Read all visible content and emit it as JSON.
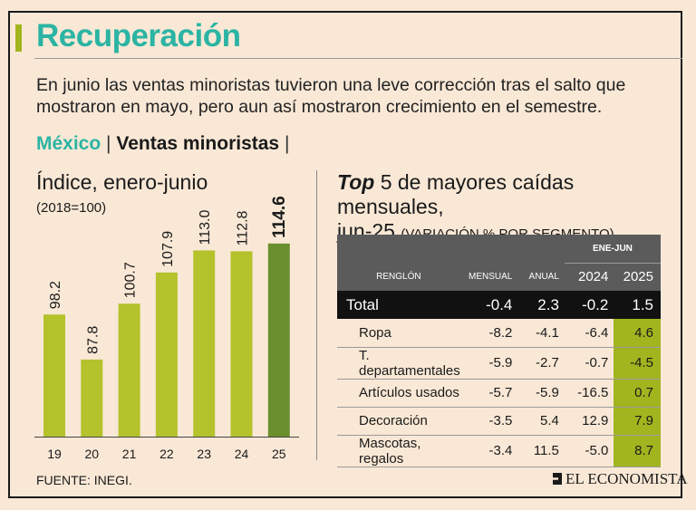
{
  "header": {
    "title": "Recuperación",
    "subtitle": "En junio las ventas minoristas tuvieron una leve corrección tras el salto que mostraron en mayo, pero aun así mostraron crecimiento en el semestre."
  },
  "section": {
    "country": "México",
    "separator": "|",
    "topic": "Ventas minoristas",
    "end_separator": "|"
  },
  "chart_data": [
    {
      "type": "bar",
      "title": "Índice, enero-junio",
      "subtitle": "(2018=100)",
      "categories": [
        "19",
        "20",
        "21",
        "22",
        "23",
        "24",
        "25"
      ],
      "values": [
        98.2,
        87.8,
        100.7,
        107.9,
        113.0,
        112.8,
        114.6
      ],
      "value_labels": [
        "98.2",
        "87.8",
        "100.7",
        "107.9",
        "113.0",
        "112.8",
        "114.6"
      ],
      "ylim": [
        70,
        120
      ],
      "colors": {
        "bar": "#b4c22c",
        "highlight": "#6a8f2f"
      },
      "highlight_index": 6
    },
    {
      "type": "table",
      "title_italic": "Top",
      "title_rest": "5 de mayores caídas mensuales,",
      "title_line2": "jun-25",
      "title_note": "(VARIACIÓN % POR SEGMENTO)",
      "group_header": "ENE-JUN",
      "columns": [
        "RENGLÓN",
        "MENSUAL",
        "ANUAL",
        "2024",
        "2025"
      ],
      "total": {
        "label": "Total",
        "mensual": "-0.4",
        "anual": "2.3",
        "y2024": "-0.2",
        "y2025": "1.5"
      },
      "rows": [
        {
          "label": "Ropa",
          "mensual": "-8.2",
          "anual": "-4.1",
          "y2024": "-6.4",
          "y2025": "4.6"
        },
        {
          "label": "T. departamentales",
          "mensual": "-5.9",
          "anual": "-2.7",
          "y2024": "-0.7",
          "y2025": "-4.5"
        },
        {
          "label": "Artículos usados",
          "mensual": "-5.7",
          "anual": "-5.9",
          "y2024": "-16.5",
          "y2025": "0.7"
        },
        {
          "label": "Decoración",
          "mensual": "-3.5",
          "anual": "5.4",
          "y2024": "12.9",
          "y2025": "7.9"
        },
        {
          "label": "Mascotas, regalos",
          "mensual": "-3.4",
          "anual": "11.5",
          "y2024": "-5.0",
          "y2025": "8.7"
        }
      ]
    }
  ],
  "footer": {
    "source": "FUENTE: INEGI.",
    "brand": "EL ECONOMISTA"
  }
}
